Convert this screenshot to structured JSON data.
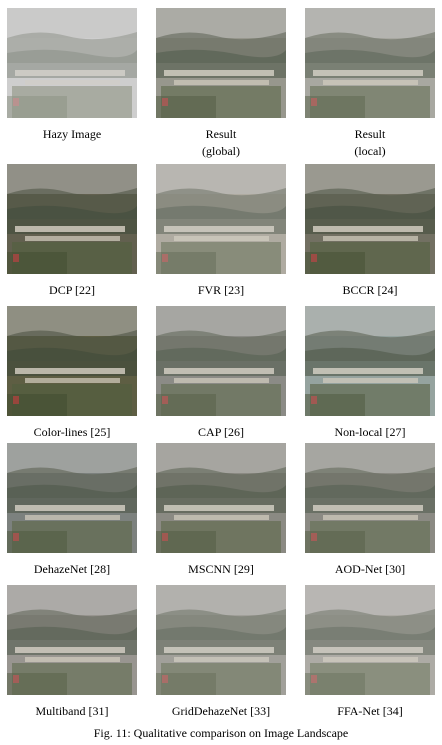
{
  "figure": {
    "caption": "Fig. 11: Qualitative comparison on Image Landscape",
    "panels": [
      {
        "label": "Hazy Image",
        "tint": "#c8c8c8",
        "haze": 0.55
      },
      {
        "label": "Result\n(global)",
        "tint": "#8a8a7e",
        "haze": 0.18
      },
      {
        "label": "Result\n(local)",
        "tint": "#9a9a90",
        "haze": 0.25
      },
      {
        "label": "DCP [22]",
        "tint": "#5c5a48",
        "haze": 0.05
      },
      {
        "label": "FVR [23]",
        "tint": "#a09a8c",
        "haze": 0.3
      },
      {
        "label": "BCCR [24]",
        "tint": "#6a6858",
        "haze": 0.08
      },
      {
        "label": "Color-lines [25]",
        "tint": "#5a5a3e",
        "haze": 0.04
      },
      {
        "label": "CAP [26]",
        "tint": "#7a7a74",
        "haze": 0.2
      },
      {
        "label": "Non-local [27]",
        "tint": "#8a9a96",
        "haze": 0.15
      },
      {
        "label": "DehazeNet [28]",
        "tint": "#6e7470",
        "haze": 0.14
      },
      {
        "label": "MSCNN [29]",
        "tint": "#7e7c74",
        "haze": 0.16
      },
      {
        "label": "AOD-Net [30]",
        "tint": "#7a7870",
        "haze": 0.2
      },
      {
        "label": "Multiband [31]",
        "tint": "#8a8680",
        "haze": 0.2
      },
      {
        "label": "GridDehazeNet [33]",
        "tint": "#8c8a82",
        "haze": 0.3
      },
      {
        "label": "FFA-Net [34]",
        "tint": "#9a968e",
        "haze": 0.34
      }
    ]
  }
}
